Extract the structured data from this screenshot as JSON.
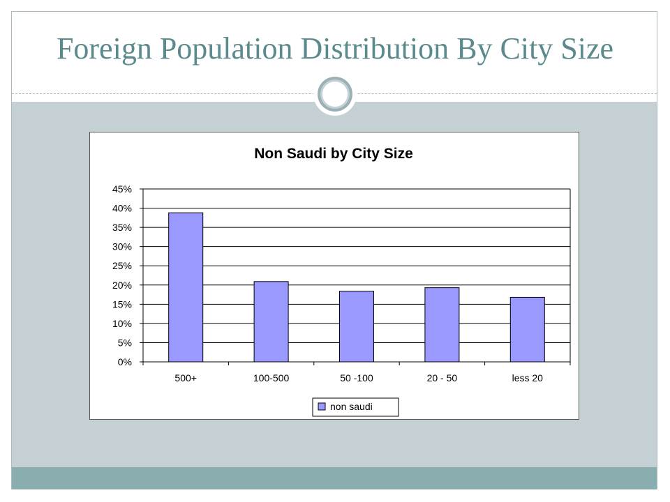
{
  "slide": {
    "title": "Foreign Population Distribution By City Size"
  },
  "colors": {
    "title": "#5b8a8c",
    "panel": "#c5d0d5",
    "footer": "#8aaeaf",
    "bar_fill": "#9999ff",
    "bar_stroke": "#000000"
  },
  "chart_data": {
    "type": "bar",
    "title": "Non Saudi by City Size",
    "categories": [
      "500+",
      "100-500",
      "50 -100",
      "20 - 50",
      "less 20"
    ],
    "series": [
      {
        "name": "non saudi",
        "values": [
          38.8,
          20.9,
          18.4,
          19.3,
          16.8
        ]
      }
    ],
    "ylim": [
      0,
      45
    ],
    "yticks": [
      "0%",
      "5%",
      "10%",
      "15%",
      "20%",
      "25%",
      "30%",
      "35%",
      "40%",
      "45%"
    ],
    "y_unit": "percent",
    "grid": true,
    "legend_position": "bottom"
  }
}
